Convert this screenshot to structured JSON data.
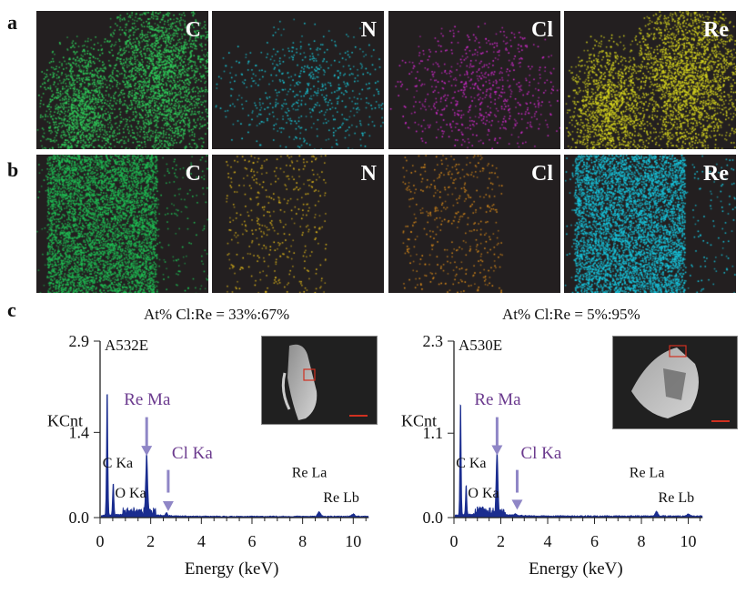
{
  "panel_labels": {
    "a": "a",
    "b": "b",
    "c": "c"
  },
  "map_rows": [
    {
      "row": "a",
      "tiles": [
        {
          "element": "C",
          "color": "#2fd05b",
          "pattern": "blob_a"
        },
        {
          "element": "N",
          "color": "#19c6d6",
          "pattern": "sparse_a"
        },
        {
          "element": "Cl",
          "color": "#d52bd0",
          "pattern": "sparse_a"
        },
        {
          "element": "Re",
          "color": "#d9d81e",
          "pattern": "blob_a"
        }
      ]
    },
    {
      "row": "b",
      "tiles": [
        {
          "element": "C",
          "color": "#1fbf54",
          "pattern": "band_b"
        },
        {
          "element": "N",
          "color": "#d9b21a",
          "pattern": "sparse_b"
        },
        {
          "element": "Cl",
          "color": "#d88a1a",
          "pattern": "sparse_b"
        },
        {
          "element": "Re",
          "color": "#16c8e0",
          "pattern": "band_b"
        }
      ]
    }
  ],
  "chart_data": [
    {
      "type": "line",
      "title": "At% Cl:Re = 33%:67%",
      "sample_label": "A532E",
      "xlabel": "Energy (keV)",
      "ylabel": "KCnt",
      "xlim": [
        0,
        10.6
      ],
      "ylim": [
        0,
        2.9
      ],
      "x_ticks": [
        0,
        2,
        4,
        6,
        8,
        10
      ],
      "y_ticks": [
        0.0,
        1.4,
        2.9
      ],
      "y_tick_labels": [
        "0.0",
        "1.4",
        "2.9"
      ],
      "series_color": "#1a2d8f",
      "peaks": [
        {
          "x": 0.28,
          "y": 2.15,
          "label": "C Ka"
        },
        {
          "x": 0.52,
          "y": 0.55,
          "label": "O Ka"
        },
        {
          "x": 1.84,
          "y": 1.0,
          "label": "Re Ma"
        },
        {
          "x": 2.62,
          "y": 0.05,
          "label": "Cl Ka"
        },
        {
          "x": 8.65,
          "y": 0.08,
          "label": "Re La"
        },
        {
          "x": 10.0,
          "y": 0.04,
          "label": "Re Lb"
        }
      ],
      "arrow_labels": [
        "Re Ma",
        "Cl Ka"
      ]
    },
    {
      "type": "line",
      "title": "At% Cl:Re = 5%:95%",
      "sample_label": "A530E",
      "xlabel": "Energy (keV)",
      "ylabel": "KCnt",
      "xlim": [
        0,
        10.6
      ],
      "ylim": [
        0,
        2.3
      ],
      "x_ticks": [
        0,
        2,
        4,
        6,
        8,
        10
      ],
      "y_ticks": [
        0.0,
        1.1,
        2.3
      ],
      "y_tick_labels": [
        "0.0",
        "1.1",
        "2.3"
      ],
      "series_color": "#1a2d8f",
      "peaks": [
        {
          "x": 0.28,
          "y": 1.55,
          "label": "C Ka"
        },
        {
          "x": 0.52,
          "y": 0.4,
          "label": "O Ka"
        },
        {
          "x": 1.84,
          "y": 0.8,
          "label": "Re Ma"
        },
        {
          "x": 2.62,
          "y": 0.02,
          "label": "Cl Ka"
        },
        {
          "x": 8.65,
          "y": 0.06,
          "label": "Re La"
        },
        {
          "x": 10.0,
          "y": 0.03,
          "label": "Re Lb"
        }
      ],
      "arrow_labels": [
        "Re Ma",
        "Cl Ka"
      ]
    }
  ],
  "colors": {
    "annotation_purple": "#6b3a8e",
    "arrow": "#8f86c6",
    "inset_box": "#d03020"
  }
}
